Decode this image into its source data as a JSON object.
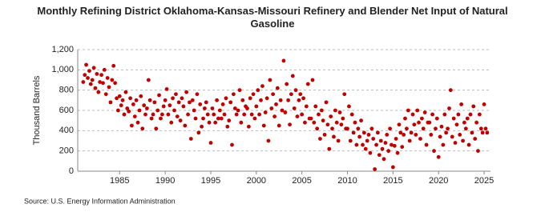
{
  "chart_data": {
    "type": "scatter",
    "title": "Monthly Refining District Oklahoma-Kansas-Missouri Refinery and Blender Net Input of Natural Gasoline",
    "y_label": "Thousand Barrels",
    "source": "Source: U.S. Energy Information Administration",
    "color": "#c00000",
    "grid": true,
    "xlim": [
      1980.4,
      2025.7
    ],
    "xticks": [
      1985,
      1990,
      1995,
      2000,
      2005,
      2010,
      2015,
      2020,
      2025
    ],
    "ylim": [
      0,
      1200
    ],
    "yticks": [
      0,
      200,
      400,
      600,
      800,
      {
        "value": 1000,
        "label": "1,000"
      },
      {
        "value": 1200,
        "label": "1,200"
      }
    ],
    "x": [
      1981.0,
      1981.17,
      1981.33,
      1981.5,
      1981.67,
      1981.83,
      1982.0,
      1982.17,
      1982.33,
      1982.5,
      1982.67,
      1982.83,
      1983.0,
      1983.17,
      1983.33,
      1983.5,
      1983.67,
      1983.83,
      1984.0,
      1984.17,
      1984.33,
      1984.5,
      1984.67,
      1984.83,
      1985.0,
      1985.17,
      1985.33,
      1985.5,
      1985.67,
      1985.83,
      1986.0,
      1986.17,
      1986.33,
      1986.5,
      1986.67,
      1986.83,
      1987.0,
      1987.17,
      1987.33,
      1987.5,
      1987.67,
      1987.83,
      1988.0,
      1988.17,
      1988.33,
      1988.5,
      1988.67,
      1988.83,
      1989.0,
      1989.17,
      1989.33,
      1989.5,
      1989.67,
      1989.83,
      1990.0,
      1990.17,
      1990.33,
      1990.5,
      1990.67,
      1990.83,
      1991.0,
      1991.17,
      1991.33,
      1991.5,
      1991.67,
      1991.83,
      1992.0,
      1992.17,
      1992.33,
      1992.5,
      1992.67,
      1992.83,
      1993.0,
      1993.17,
      1993.33,
      1993.5,
      1993.67,
      1993.83,
      1994.0,
      1994.17,
      1994.33,
      1994.5,
      1994.67,
      1994.83,
      1995.0,
      1995.17,
      1995.33,
      1995.5,
      1995.67,
      1995.83,
      1996.0,
      1996.17,
      1996.33,
      1996.5,
      1996.67,
      1996.83,
      1997.0,
      1997.17,
      1997.33,
      1997.5,
      1997.67,
      1997.83,
      1998.0,
      1998.17,
      1998.33,
      1998.5,
      1998.67,
      1998.83,
      1999.0,
      1999.17,
      1999.33,
      1999.5,
      1999.67,
      1999.83,
      2000.0,
      2000.17,
      2000.33,
      2000.5,
      2000.67,
      2000.83,
      2001.0,
      2001.17,
      2001.33,
      2001.5,
      2001.67,
      2001.83,
      2002.0,
      2002.17,
      2002.33,
      2002.5,
      2002.67,
      2002.83,
      2003.0,
      2003.17,
      2003.33,
      2003.5,
      2003.67,
      2003.83,
      2004.0,
      2004.17,
      2004.33,
      2004.5,
      2004.67,
      2004.83,
      2005.0,
      2005.17,
      2005.33,
      2005.5,
      2005.67,
      2005.83,
      2006.0,
      2006.17,
      2006.33,
      2006.5,
      2006.67,
      2006.83,
      2007.0,
      2007.17,
      2007.33,
      2007.5,
      2007.67,
      2007.83,
      2008.0,
      2008.17,
      2008.33,
      2008.5,
      2008.67,
      2008.83,
      2009.0,
      2009.17,
      2009.33,
      2009.5,
      2009.67,
      2009.83,
      2010.0,
      2010.17,
      2010.33,
      2010.5,
      2010.67,
      2010.83,
      2011.0,
      2011.17,
      2011.33,
      2011.5,
      2011.67,
      2011.83,
      2012.0,
      2012.17,
      2012.33,
      2012.5,
      2012.67,
      2012.83,
      2013.0,
      2013.17,
      2013.33,
      2013.5,
      2013.67,
      2013.83,
      2014.0,
      2014.17,
      2014.33,
      2014.5,
      2014.67,
      2014.83,
      2015.0,
      2015.17,
      2015.33,
      2015.5,
      2015.67,
      2015.83,
      2016.0,
      2016.17,
      2016.33,
      2016.5,
      2016.67,
      2016.83,
      2017.0,
      2017.17,
      2017.33,
      2017.5,
      2017.67,
      2017.83,
      2018.0,
      2018.17,
      2018.33,
      2018.5,
      2018.67,
      2018.83,
      2019.0,
      2019.17,
      2019.33,
      2019.5,
      2019.67,
      2019.83,
      2020.0,
      2020.17,
      2020.33,
      2020.5,
      2020.67,
      2020.83,
      2021.0,
      2021.17,
      2021.33,
      2021.5,
      2021.67,
      2021.83,
      2022.0,
      2022.17,
      2022.33,
      2022.5,
      2022.67,
      2022.83,
      2023.0,
      2023.17,
      2023.33,
      2023.5,
      2023.67,
      2023.83,
      2024.0,
      2024.17,
      2024.33,
      2024.5,
      2024.67,
      2024.83,
      2025.0,
      2025.17,
      2025.33
    ],
    "values": [
      880,
      950,
      1050,
      920,
      990,
      860,
      900,
      1020,
      820,
      960,
      780,
      880,
      950,
      870,
      1000,
      760,
      920,
      830,
      680,
      900,
      1040,
      870,
      720,
      600,
      740,
      650,
      700,
      560,
      780,
      620,
      590,
      720,
      450,
      660,
      540,
      700,
      480,
      600,
      740,
      420,
      650,
      560,
      620,
      900,
      700,
      520,
      560,
      680,
      420,
      600,
      750,
      520,
      560,
      640,
      700,
      810,
      560,
      650,
      480,
      720,
      600,
      760,
      540,
      680,
      500,
      720,
      640,
      450,
      780,
      560,
      680,
      320,
      700,
      600,
      520,
      760,
      380,
      660,
      440,
      520,
      620,
      680,
      560,
      480,
      280,
      620,
      560,
      480,
      700,
      520,
      600,
      520,
      660,
      560,
      720,
      440,
      500,
      680,
      260,
      760,
      620,
      560,
      600,
      800,
      480,
      700,
      560,
      640,
      620,
      440,
      720,
      560,
      760,
      520,
      640,
      800,
      560,
      700,
      840,
      450,
      580,
      720,
      300,
      900,
      620,
      760,
      540,
      660,
      820,
      450,
      700,
      600,
      1090,
      580,
      860,
      700,
      460,
      760,
      940,
      620,
      800,
      540,
      700,
      760,
      560,
      720,
      480,
      640,
      860,
      520,
      520,
      900,
      480,
      640,
      420,
      560,
      320,
      600,
      500,
      360,
      680,
      460,
      220,
      540,
      420,
      340,
      600,
      480,
      300,
      580,
      460,
      520,
      760,
      420,
      420,
      640,
      300,
      560,
      380,
      480,
      260,
      420,
      340,
      500,
      260,
      380,
      220,
      300,
      360,
      180,
      420,
      320,
      20,
      260,
      380,
      160,
      300,
      220,
      120,
      280,
      360,
      200,
      420,
      260,
      40,
      250,
      320,
      180,
      460,
      380,
      240,
      360,
      520,
      420,
      600,
      300,
      380,
      560,
      460,
      360,
      600,
      480,
      320,
      520,
      420,
      580,
      260,
      480,
      480,
      360,
      560,
      200,
      420,
      520,
      140,
      340,
      440,
      260,
      560,
      380,
      420,
      620,
      800,
      340,
      520,
      280,
      460,
      560,
      360,
      660,
      300,
      480,
      420,
      520,
      260,
      560,
      380,
      640,
      320,
      480,
      200,
      560,
      420,
      380,
      660,
      420,
      380
    ]
  }
}
